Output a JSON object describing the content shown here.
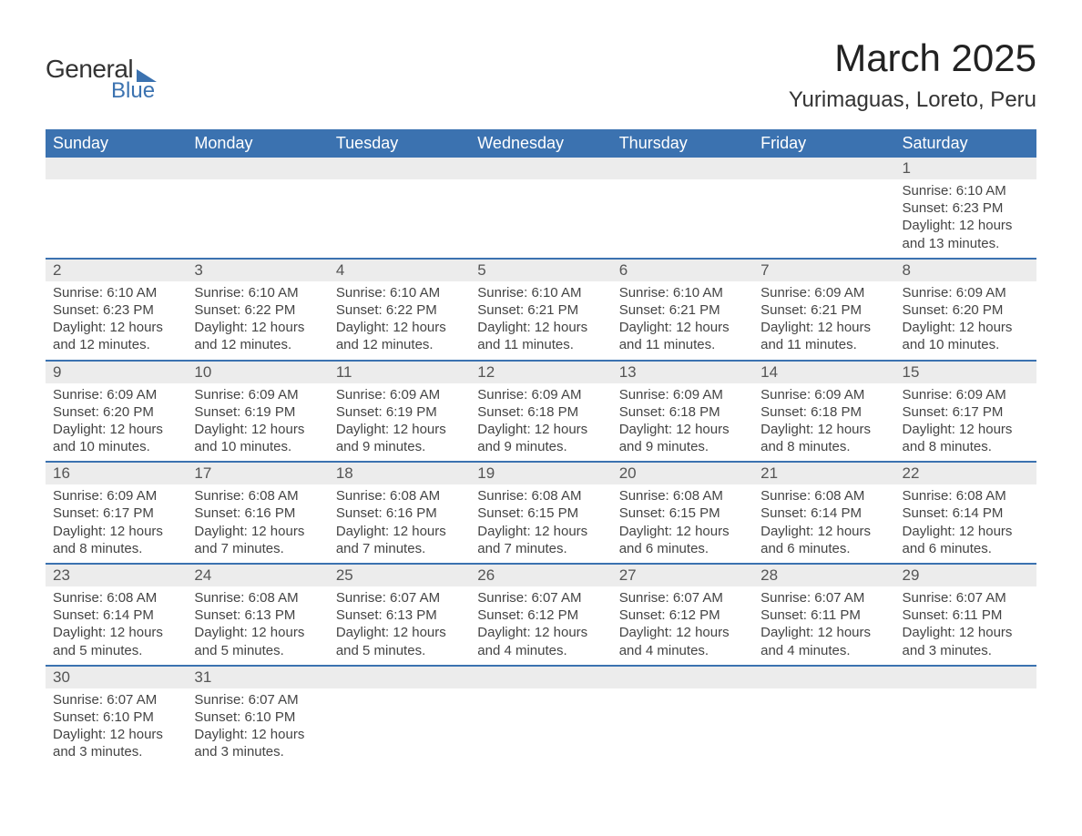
{
  "logo": {
    "line1": "General",
    "line2": "Blue"
  },
  "title": "March 2025",
  "location": "Yurimaguas, Loreto, Peru",
  "colors": {
    "header_bg": "#3b72b0",
    "header_fg": "#ffffff",
    "daynum_bg": "#ececec",
    "row_border": "#3b72b0",
    "text": "#444444",
    "title_text": "#222222"
  },
  "day_headers": [
    "Sunday",
    "Monday",
    "Tuesday",
    "Wednesday",
    "Thursday",
    "Friday",
    "Saturday"
  ],
  "weeks": [
    [
      null,
      null,
      null,
      null,
      null,
      null,
      {
        "n": "1",
        "sunrise": "6:10 AM",
        "sunset": "6:23 PM",
        "daylight": "12 hours and 13 minutes."
      }
    ],
    [
      {
        "n": "2",
        "sunrise": "6:10 AM",
        "sunset": "6:23 PM",
        "daylight": "12 hours and 12 minutes."
      },
      {
        "n": "3",
        "sunrise": "6:10 AM",
        "sunset": "6:22 PM",
        "daylight": "12 hours and 12 minutes."
      },
      {
        "n": "4",
        "sunrise": "6:10 AM",
        "sunset": "6:22 PM",
        "daylight": "12 hours and 12 minutes."
      },
      {
        "n": "5",
        "sunrise": "6:10 AM",
        "sunset": "6:21 PM",
        "daylight": "12 hours and 11 minutes."
      },
      {
        "n": "6",
        "sunrise": "6:10 AM",
        "sunset": "6:21 PM",
        "daylight": "12 hours and 11 minutes."
      },
      {
        "n": "7",
        "sunrise": "6:09 AM",
        "sunset": "6:21 PM",
        "daylight": "12 hours and 11 minutes."
      },
      {
        "n": "8",
        "sunrise": "6:09 AM",
        "sunset": "6:20 PM",
        "daylight": "12 hours and 10 minutes."
      }
    ],
    [
      {
        "n": "9",
        "sunrise": "6:09 AM",
        "sunset": "6:20 PM",
        "daylight": "12 hours and 10 minutes."
      },
      {
        "n": "10",
        "sunrise": "6:09 AM",
        "sunset": "6:19 PM",
        "daylight": "12 hours and 10 minutes."
      },
      {
        "n": "11",
        "sunrise": "6:09 AM",
        "sunset": "6:19 PM",
        "daylight": "12 hours and 9 minutes."
      },
      {
        "n": "12",
        "sunrise": "6:09 AM",
        "sunset": "6:18 PM",
        "daylight": "12 hours and 9 minutes."
      },
      {
        "n": "13",
        "sunrise": "6:09 AM",
        "sunset": "6:18 PM",
        "daylight": "12 hours and 9 minutes."
      },
      {
        "n": "14",
        "sunrise": "6:09 AM",
        "sunset": "6:18 PM",
        "daylight": "12 hours and 8 minutes."
      },
      {
        "n": "15",
        "sunrise": "6:09 AM",
        "sunset": "6:17 PM",
        "daylight": "12 hours and 8 minutes."
      }
    ],
    [
      {
        "n": "16",
        "sunrise": "6:09 AM",
        "sunset": "6:17 PM",
        "daylight": "12 hours and 8 minutes."
      },
      {
        "n": "17",
        "sunrise": "6:08 AM",
        "sunset": "6:16 PM",
        "daylight": "12 hours and 7 minutes."
      },
      {
        "n": "18",
        "sunrise": "6:08 AM",
        "sunset": "6:16 PM",
        "daylight": "12 hours and 7 minutes."
      },
      {
        "n": "19",
        "sunrise": "6:08 AM",
        "sunset": "6:15 PM",
        "daylight": "12 hours and 7 minutes."
      },
      {
        "n": "20",
        "sunrise": "6:08 AM",
        "sunset": "6:15 PM",
        "daylight": "12 hours and 6 minutes."
      },
      {
        "n": "21",
        "sunrise": "6:08 AM",
        "sunset": "6:14 PM",
        "daylight": "12 hours and 6 minutes."
      },
      {
        "n": "22",
        "sunrise": "6:08 AM",
        "sunset": "6:14 PM",
        "daylight": "12 hours and 6 minutes."
      }
    ],
    [
      {
        "n": "23",
        "sunrise": "6:08 AM",
        "sunset": "6:14 PM",
        "daylight": "12 hours and 5 minutes."
      },
      {
        "n": "24",
        "sunrise": "6:08 AM",
        "sunset": "6:13 PM",
        "daylight": "12 hours and 5 minutes."
      },
      {
        "n": "25",
        "sunrise": "6:07 AM",
        "sunset": "6:13 PM",
        "daylight": "12 hours and 5 minutes."
      },
      {
        "n": "26",
        "sunrise": "6:07 AM",
        "sunset": "6:12 PM",
        "daylight": "12 hours and 4 minutes."
      },
      {
        "n": "27",
        "sunrise": "6:07 AM",
        "sunset": "6:12 PM",
        "daylight": "12 hours and 4 minutes."
      },
      {
        "n": "28",
        "sunrise": "6:07 AM",
        "sunset": "6:11 PM",
        "daylight": "12 hours and 4 minutes."
      },
      {
        "n": "29",
        "sunrise": "6:07 AM",
        "sunset": "6:11 PM",
        "daylight": "12 hours and 3 minutes."
      }
    ],
    [
      {
        "n": "30",
        "sunrise": "6:07 AM",
        "sunset": "6:10 PM",
        "daylight": "12 hours and 3 minutes."
      },
      {
        "n": "31",
        "sunrise": "6:07 AM",
        "sunset": "6:10 PM",
        "daylight": "12 hours and 3 minutes."
      },
      null,
      null,
      null,
      null,
      null
    ]
  ],
  "labels": {
    "sunrise": "Sunrise: ",
    "sunset": "Sunset: ",
    "daylight": "Daylight: "
  }
}
